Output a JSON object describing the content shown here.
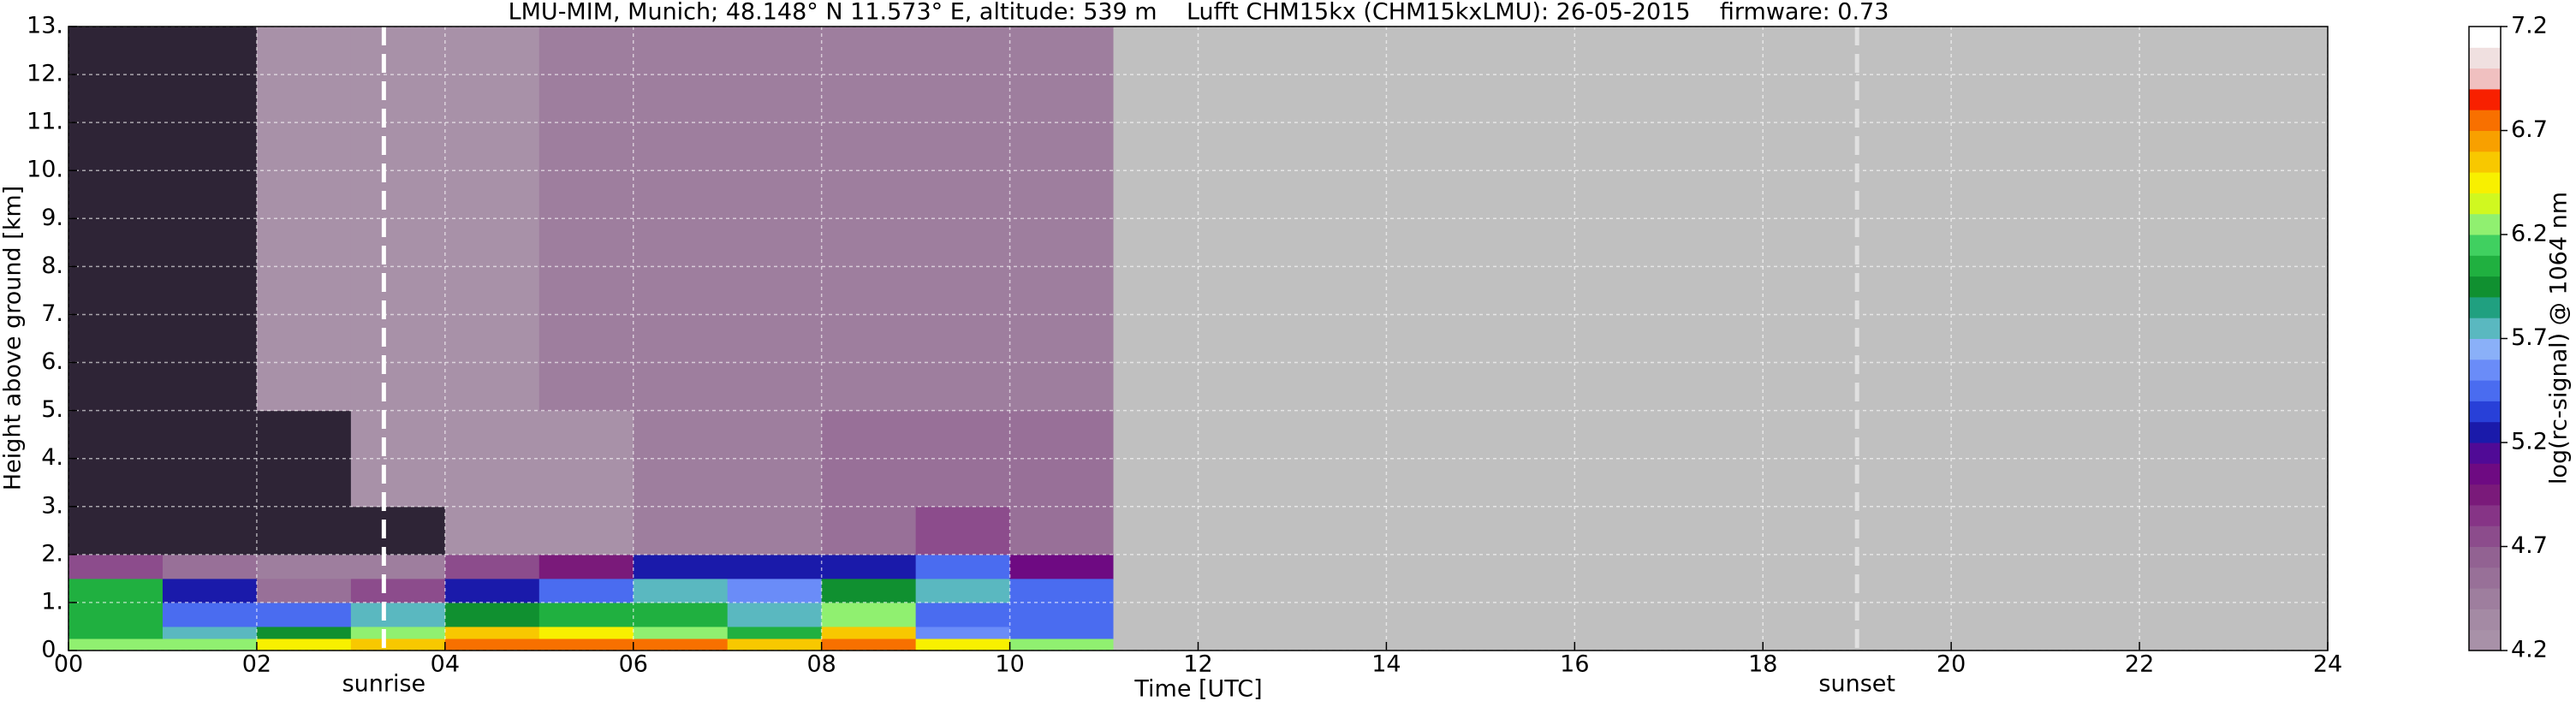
{
  "chart_data": {
    "type": "heatmap",
    "title": "LMU-MIM, Munich; 48.148° N 11.573° E, altitude: 539 m    Lufft CHM15kx (CHM15kxLMU): 26-05-2015    firmware: 0.73",
    "xlabel": "Time [UTC]",
    "ylabel": "Height above ground [km]",
    "xlim": [
      0,
      24
    ],
    "ylim": [
      0,
      13
    ],
    "xticks": [
      {
        "value": 0,
        "label": "00"
      },
      {
        "value": 2,
        "label": "02"
      },
      {
        "value": 4,
        "label": "04"
      },
      {
        "value": 6,
        "label": "06"
      },
      {
        "value": 8,
        "label": "08"
      },
      10,
      12,
      14,
      16,
      18,
      20,
      22,
      24
    ],
    "yticks": [
      {
        "value": 0,
        "label": "0."
      },
      {
        "value": 1,
        "label": "1."
      },
      {
        "value": 2,
        "label": "2."
      },
      {
        "value": 3,
        "label": "3."
      },
      {
        "value": 4,
        "label": "4."
      },
      {
        "value": 5,
        "label": "5."
      },
      {
        "value": 6,
        "label": "6."
      },
      {
        "value": 7,
        "label": "7."
      },
      {
        "value": 8,
        "label": "8."
      },
      {
        "value": 9,
        "label": "9."
      },
      {
        "value": 10,
        "label": "10."
      },
      {
        "value": 11,
        "label": "11."
      },
      {
        "value": 12,
        "label": "12."
      },
      {
        "value": 13,
        "label": "13."
      }
    ],
    "grid": true,
    "x_edges": [
      0,
      1,
      2,
      3,
      4,
      5,
      6,
      7,
      8,
      9,
      10,
      11.1,
      24
    ],
    "y_edges": [
      0,
      0.25,
      0.5,
      1,
      1.5,
      2,
      3,
      5,
      13
    ],
    "z": [
      [
        6.2,
        6.3,
        6.4,
        6.6,
        6.7,
        6.8,
        6.7,
        6.6,
        6.8,
        6.4,
        6.2,
        null
      ],
      [
        6.0,
        5.8,
        5.9,
        6.2,
        6.5,
        6.4,
        6.3,
        6.1,
        6.5,
        5.6,
        5.5,
        null
      ],
      [
        6.1,
        5.4,
        5.5,
        5.7,
        5.9,
        6.0,
        6.1,
        5.8,
        6.2,
        5.5,
        5.4,
        null
      ],
      [
        6.0,
        5.3,
        4.6,
        4.7,
        5.2,
        5.5,
        5.8,
        5.6,
        5.9,
        5.7,
        5.5,
        null
      ],
      [
        4.8,
        4.6,
        4.5,
        4.5,
        4.8,
        5.0,
        5.2,
        5.2,
        5.3,
        5.4,
        5.1,
        null
      ],
      [
        4.1,
        4.1,
        4.1,
        4.1,
        4.2,
        4.3,
        4.4,
        4.5,
        4.6,
        4.7,
        4.6,
        null
      ],
      [
        4.1,
        4.1,
        4.1,
        4.2,
        4.2,
        4.3,
        4.4,
        4.5,
        4.6,
        4.6,
        4.6,
        null
      ],
      [
        4.1,
        4.1,
        4.2,
        4.2,
        4.3,
        4.4,
        4.4,
        4.5,
        4.5,
        4.5,
        4.5,
        null
      ]
    ],
    "under_color": "#2e2436",
    "nodata_color": "#c0c0c0",
    "colorbar": {
      "label": "log(rc-signal) @ 1064 nm",
      "clim": [
        4.2,
        7.2
      ],
      "ticks": [
        4.2,
        4.7,
        5.2,
        5.7,
        6.2,
        6.7,
        7.2
      ],
      "colors": [
        "#a891a8",
        "#a48aa4",
        "#9e7e9e",
        "#987098",
        "#926292",
        "#8c4c8c",
        "#863486",
        "#7a1a7a",
        "#6e0a82",
        "#500a96",
        "#1a1aaa",
        "#2840d8",
        "#4a6cf0",
        "#6a8cf8",
        "#8ab0f8",
        "#5ab8c0",
        "#20a080",
        "#109030",
        "#20b040",
        "#40d060",
        "#90f070",
        "#d0f820",
        "#f8f000",
        "#f8c800",
        "#f8a000",
        "#f87000",
        "#f82000",
        "#f0c0c0",
        "#f0e0e0",
        "#ffffff"
      ]
    },
    "annotations": [
      {
        "label": "sunrise",
        "x": 3.35,
        "color": "#ffffff"
      },
      {
        "label": "sunset",
        "x": 19.0,
        "color": "#e0e0e0"
      }
    ]
  }
}
